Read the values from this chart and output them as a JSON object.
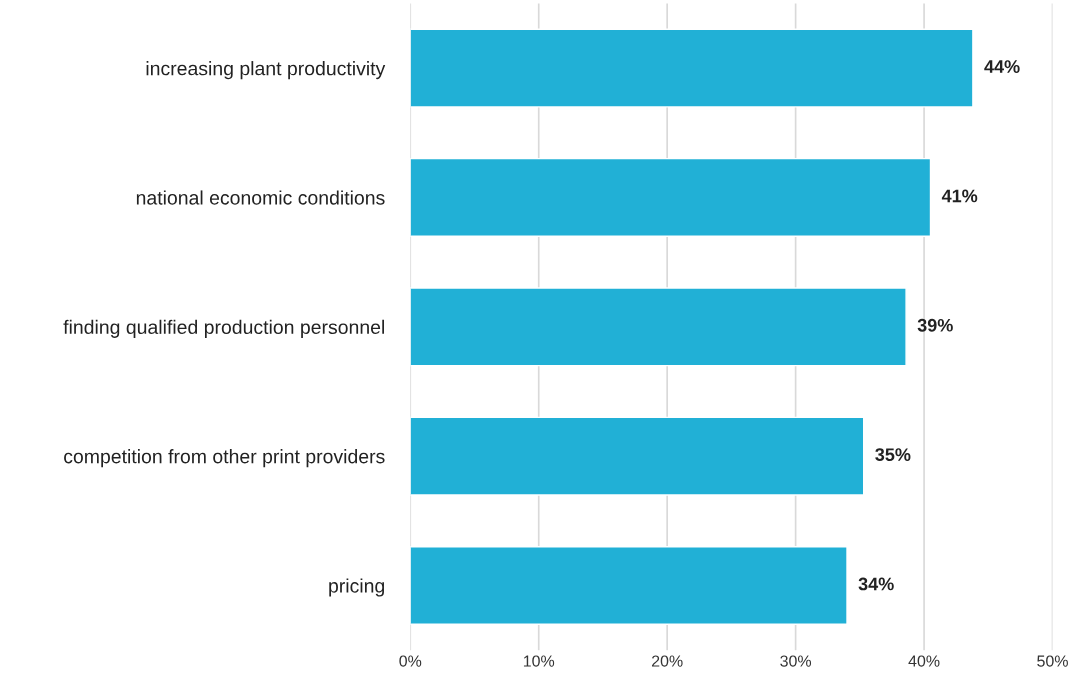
{
  "chart_data": {
    "type": "bar",
    "orientation": "horizontal",
    "categories": [
      "increasing plant productivity",
      "national economic conditions",
      "finding qualified production personnel",
      "competition from other print providers",
      "pricing"
    ],
    "values": [
      43.8,
      40.5,
      38.6,
      35.3,
      34.0
    ],
    "value_labels": [
      "44%",
      "41%",
      "39%",
      "35%",
      "34%"
    ],
    "color": "#21b0d6",
    "xlim": [
      0,
      50
    ],
    "xticks": [
      {
        "value": 0,
        "label": "0%"
      },
      {
        "value": 10,
        "label": "10%"
      },
      {
        "value": 20,
        "label": "20%"
      },
      {
        "value": 30,
        "label": "30%"
      },
      {
        "value": 40,
        "label": "40%"
      },
      {
        "value": 50,
        "label": "50%"
      }
    ],
    "grid": "x",
    "legend": false
  }
}
